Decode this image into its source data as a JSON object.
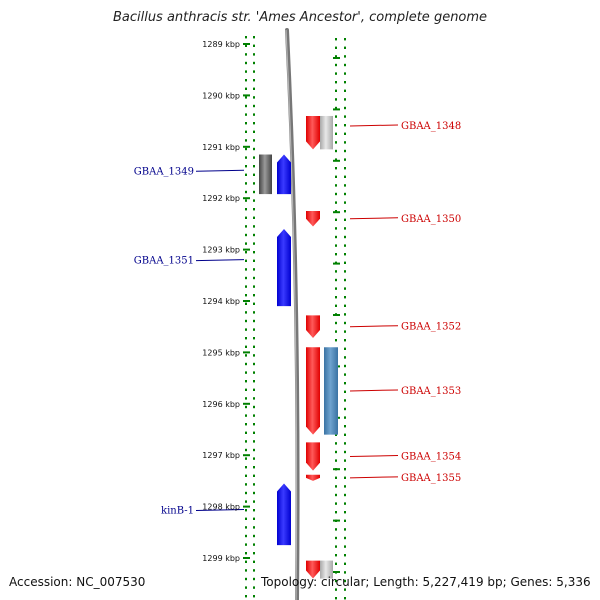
{
  "title": "Bacillus anthracis str. 'Ames Ancestor', complete genome",
  "footer": {
    "accession": "Accession: NC_007530",
    "summary": "Topology: circular; Length: 5,227,419 bp; Genes: 5,336"
  },
  "colors": {
    "forward_gene": "#ff0000",
    "reverse_gene": "#0000ff",
    "neighbor_gray": "#bbbbbb",
    "neighbor_dark": "#555555",
    "steel_blue": "#4682b4",
    "tick_green": "#008000",
    "reverse_label": "#00008b",
    "forward_label": "#cc0000",
    "genome_line": "#777777"
  },
  "scale": {
    "unit": "kbp",
    "labels": [
      "1289 kbp",
      "1290 kbp",
      "1291 kbp",
      "1292 kbp",
      "1293 kbp",
      "1294 kbp",
      "1295 kbp",
      "1296 kbp",
      "1297 kbp",
      "1298 kbp",
      "1299 kbp"
    ],
    "start_kbp": 1289,
    "end_kbp": 1299
  },
  "genes": [
    {
      "label": "GBAA_1348",
      "strand": "forward",
      "start_kbp": 1290.4,
      "end_kbp": 1291.05,
      "color_key": "forward_gene",
      "partner": "neighbor_gray"
    },
    {
      "label": "GBAA_1349",
      "strand": "reverse",
      "start_kbp": 1291.15,
      "end_kbp": 1291.92,
      "color_key": "reverse_gene",
      "partner": "neighbor_dark"
    },
    {
      "label": "GBAA_1350",
      "strand": "forward",
      "start_kbp": 1292.25,
      "end_kbp": 1292.55,
      "color_key": "forward_gene",
      "partner": null
    },
    {
      "label": "GBAA_1351",
      "strand": "reverse",
      "start_kbp": 1292.6,
      "end_kbp": 1294.1,
      "color_key": "reverse_gene",
      "partner": null
    },
    {
      "label": "GBAA_1352",
      "strand": "forward",
      "start_kbp": 1294.28,
      "end_kbp": 1294.72,
      "color_key": "forward_gene",
      "partner": null
    },
    {
      "label": "GBAA_1353",
      "strand": "forward",
      "start_kbp": 1294.9,
      "end_kbp": 1296.6,
      "color_key": "forward_gene",
      "partner": "steel_blue"
    },
    {
      "label": "GBAA_1354",
      "strand": "forward",
      "start_kbp": 1296.75,
      "end_kbp": 1297.3,
      "color_key": "forward_gene",
      "partner": null
    },
    {
      "label": "GBAA_1355",
      "strand": "forward",
      "start_kbp": 1297.38,
      "end_kbp": 1297.5,
      "color_key": "forward_gene",
      "partner": null
    },
    {
      "label": "kinB-1",
      "strand": "reverse",
      "start_kbp": 1297.55,
      "end_kbp": 1298.75,
      "color_key": "reverse_gene",
      "partner": null
    },
    {
      "label": "",
      "strand": "forward",
      "start_kbp": 1299.05,
      "end_kbp": 1299.4,
      "color_key": "forward_gene",
      "partner": "neighbor_gray"
    }
  ]
}
